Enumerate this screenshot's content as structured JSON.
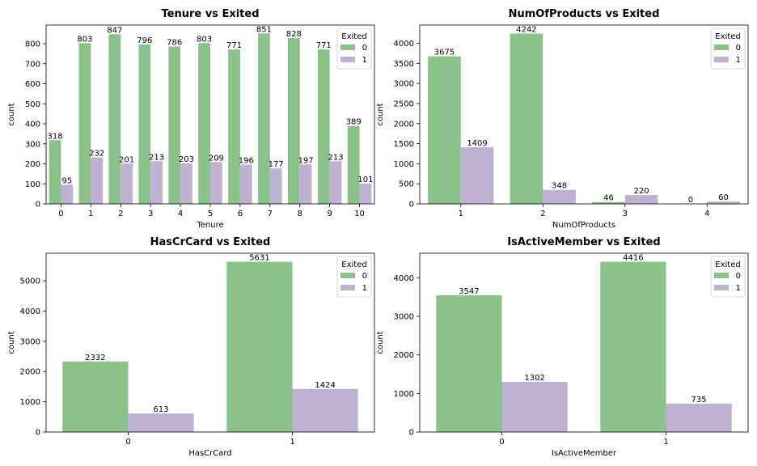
{
  "colors": {
    "series0": "#8BC28A",
    "series1": "#BFB1D2",
    "axis": "#000000"
  },
  "chart_data": [
    {
      "type": "bar",
      "title": "Tenure vs Exited",
      "xlabel": "Tenure",
      "ylabel": "count",
      "categories": [
        "0",
        "1",
        "2",
        "3",
        "4",
        "5",
        "6",
        "7",
        "8",
        "9",
        "10"
      ],
      "series": [
        {
          "name": "0",
          "values": [
            318,
            803,
            847,
            796,
            786,
            803,
            771,
            851,
            828,
            771,
            389
          ]
        },
        {
          "name": "1",
          "values": [
            95,
            232,
            201,
            213,
            203,
            209,
            196,
            177,
            197,
            213,
            101
          ]
        }
      ],
      "ylim": [
        0,
        893
      ],
      "yticks": [
        0,
        100,
        200,
        300,
        400,
        500,
        600,
        700,
        800
      ],
      "legend": {
        "title": "Exited",
        "position": "top-right"
      },
      "grid": false
    },
    {
      "type": "bar",
      "title": "NumOfProducts vs Exited",
      "xlabel": "NumOfProducts",
      "ylabel": "count",
      "categories": [
        "1",
        "2",
        "3",
        "4"
      ],
      "series": [
        {
          "name": "0",
          "values": [
            3675,
            4242,
            46,
            0
          ]
        },
        {
          "name": "1",
          "values": [
            1409,
            348,
            220,
            60
          ]
        }
      ],
      "ylim": [
        0,
        4454
      ],
      "yticks": [
        0,
        500,
        1000,
        1500,
        2000,
        2500,
        3000,
        3500,
        4000
      ],
      "legend": {
        "title": "Exited",
        "position": "top-right"
      },
      "grid": false
    },
    {
      "type": "bar",
      "title": "HasCrCard vs Exited",
      "xlabel": "HasCrCard",
      "ylabel": "count",
      "categories": [
        "0",
        "1"
      ],
      "series": [
        {
          "name": "0",
          "values": [
            2332,
            5631
          ]
        },
        {
          "name": "1",
          "values": [
            613,
            1424
          ]
        }
      ],
      "ylim": [
        0,
        5913
      ],
      "yticks": [
        0,
        1000,
        2000,
        3000,
        4000,
        5000
      ],
      "legend": {
        "title": "Exited",
        "position": "top-right"
      },
      "grid": false
    },
    {
      "type": "bar",
      "title": "IsActiveMember vs Exited",
      "xlabel": "IsActiveMember",
      "ylabel": "count",
      "categories": [
        "0",
        "1"
      ],
      "series": [
        {
          "name": "0",
          "values": [
            3547,
            4416
          ]
        },
        {
          "name": "1",
          "values": [
            1302,
            735
          ]
        }
      ],
      "ylim": [
        0,
        4637
      ],
      "yticks": [
        0,
        1000,
        2000,
        3000,
        4000
      ],
      "legend": {
        "title": "Exited",
        "position": "top-right"
      },
      "grid": false
    }
  ]
}
